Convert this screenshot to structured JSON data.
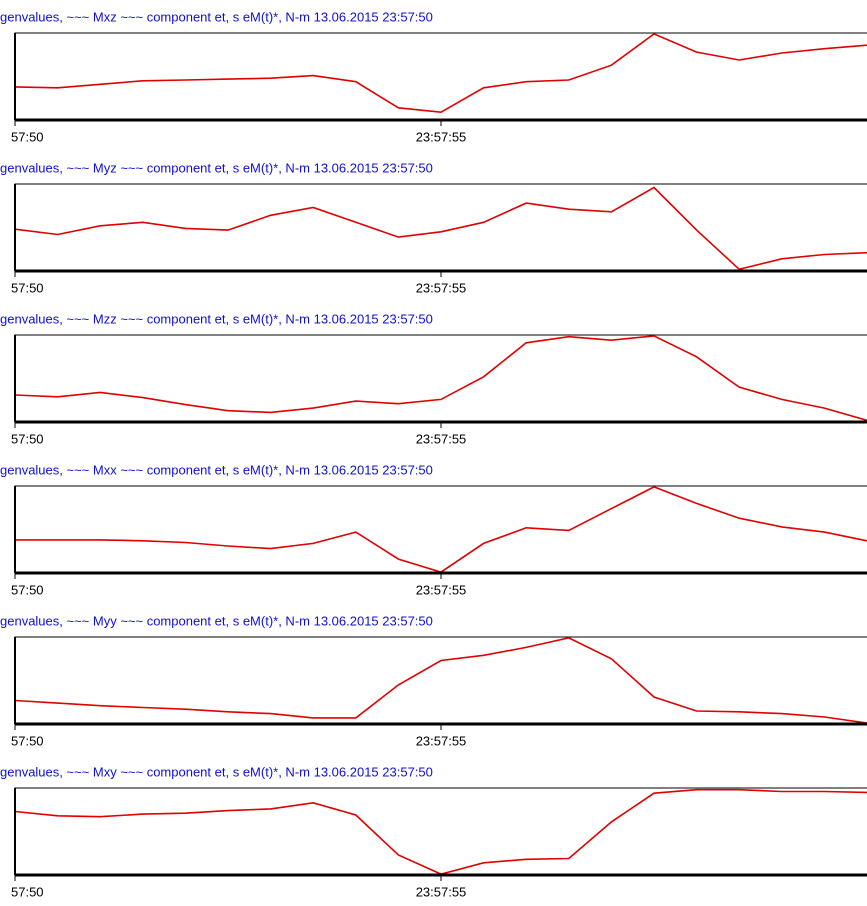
{
  "chart_data": [
    {
      "type": "line",
      "title": "genvalues, ~~~ Mxz ~~~ component  et, s  eM(t)*, N-m 13.06.2015  23:57:50",
      "x": [
        0,
        0.5,
        1,
        1.5,
        2,
        2.5,
        3,
        3.5,
        4,
        4.5,
        5,
        5.5,
        6,
        6.5,
        7,
        7.5,
        8,
        8.5,
        9,
        9.5,
        10
      ],
      "series": [
        {
          "color": "#e00000",
          "values": [
            0.38,
            0.37,
            0.41,
            0.45,
            0.46,
            0.47,
            0.48,
            0.51,
            0.44,
            0.14,
            0.09,
            0.37,
            0.44,
            0.46,
            0.63,
            0.99,
            0.78,
            0.69,
            0.77,
            0.82,
            0.86
          ]
        }
      ],
      "xlim": [
        0,
        10
      ],
      "ylim": [
        0,
        1
      ],
      "xticks": [
        {
          "value": 0,
          "label": "57:50"
        },
        {
          "value": 5,
          "label": "23:57:55"
        }
      ]
    },
    {
      "type": "line",
      "title": "genvalues, ~~~ Myz ~~~ component  et, s  eM(t)*, N-m 13.06.2015  23:57:50",
      "x": [
        0,
        0.5,
        1,
        1.5,
        2,
        2.5,
        3,
        3.5,
        4,
        4.5,
        5,
        5.5,
        6,
        6.5,
        7,
        7.5,
        8,
        8.5,
        9,
        9.5,
        10
      ],
      "series": [
        {
          "color": "#e00000",
          "values": [
            0.48,
            0.42,
            0.52,
            0.56,
            0.49,
            0.47,
            0.64,
            0.73,
            0.56,
            0.39,
            0.45,
            0.56,
            0.78,
            0.71,
            0.68,
            0.96,
            0.47,
            0.02,
            0.14,
            0.19,
            0.21
          ]
        }
      ],
      "xlim": [
        0,
        10
      ],
      "ylim": [
        0,
        1
      ],
      "xticks": [
        {
          "value": 0,
          "label": "57:50"
        },
        {
          "value": 5,
          "label": "23:57:55"
        }
      ]
    },
    {
      "type": "line",
      "title": "genvalues, ~~~ Mzz ~~~ component  et, s  eM(t)*, N-m 13.06.2015  23:57:50",
      "x": [
        0,
        0.5,
        1,
        1.5,
        2,
        2.5,
        3,
        3.5,
        4,
        4.5,
        5,
        5.5,
        6,
        6.5,
        7,
        7.5,
        8,
        8.5,
        9,
        9.5,
        10
      ],
      "series": [
        {
          "color": "#e00000",
          "values": [
            0.31,
            0.29,
            0.34,
            0.28,
            0.2,
            0.13,
            0.11,
            0.16,
            0.24,
            0.21,
            0.26,
            0.52,
            0.91,
            0.98,
            0.94,
            0.99,
            0.75,
            0.4,
            0.26,
            0.16,
            0.02
          ]
        }
      ],
      "xlim": [
        0,
        10
      ],
      "ylim": [
        0,
        1
      ],
      "xticks": [
        {
          "value": 0,
          "label": "57:50"
        },
        {
          "value": 5,
          "label": "23:57:55"
        }
      ]
    },
    {
      "type": "line",
      "title": "genvalues, ~~~ Mxx ~~~ component  et, s  eM(t)*, N-m 13.06.2015  23:57:50",
      "x": [
        0,
        0.5,
        1,
        1.5,
        2,
        2.5,
        3,
        3.5,
        4,
        4.5,
        5,
        5.5,
        6,
        6.5,
        7,
        7.5,
        8,
        8.5,
        9,
        9.5,
        10
      ],
      "series": [
        {
          "color": "#e00000",
          "values": [
            0.38,
            0.38,
            0.38,
            0.37,
            0.35,
            0.31,
            0.28,
            0.34,
            0.47,
            0.16,
            0.01,
            0.34,
            0.52,
            0.49,
            0.74,
            0.99,
            0.8,
            0.63,
            0.53,
            0.47,
            0.37
          ]
        }
      ],
      "xlim": [
        0,
        10
      ],
      "ylim": [
        0,
        1
      ],
      "xticks": [
        {
          "value": 0,
          "label": "57:50"
        },
        {
          "value": 5,
          "label": "23:57:55"
        }
      ]
    },
    {
      "type": "line",
      "title": "genvalues, ~~~ Myy ~~~ component  et, s  eM(t)*, N-m 13.06.2015  23:57:50",
      "x": [
        0,
        0.5,
        1,
        1.5,
        2,
        2.5,
        3,
        3.5,
        4,
        4.5,
        5,
        5.5,
        6,
        6.5,
        7,
        7.5,
        8,
        8.5,
        9,
        9.5,
        10
      ],
      "series": [
        {
          "color": "#e00000",
          "values": [
            0.27,
            0.24,
            0.21,
            0.19,
            0.17,
            0.14,
            0.12,
            0.07,
            0.07,
            0.45,
            0.73,
            0.79,
            0.88,
            0.99,
            0.75,
            0.31,
            0.15,
            0.14,
            0.12,
            0.08,
            0.01
          ]
        }
      ],
      "xlim": [
        0,
        10
      ],
      "ylim": [
        0,
        1
      ],
      "xticks": [
        {
          "value": 0,
          "label": "57:50"
        },
        {
          "value": 5,
          "label": "23:57:55"
        }
      ]
    },
    {
      "type": "line",
      "title": "genvalues, ~~~ Mxy ~~~ component  et, s  eM(t)*, N-m 13.06.2015  23:57:50",
      "x": [
        0,
        0.5,
        1,
        1.5,
        2,
        2.5,
        3,
        3.5,
        4,
        4.5,
        5,
        5.5,
        6,
        6.5,
        7,
        7.5,
        8,
        8.5,
        9,
        9.5,
        10
      ],
      "series": [
        {
          "color": "#e00000",
          "values": [
            0.73,
            0.68,
            0.67,
            0.7,
            0.71,
            0.74,
            0.76,
            0.83,
            0.69,
            0.23,
            0.01,
            0.14,
            0.18,
            0.19,
            0.61,
            0.94,
            0.98,
            0.98,
            0.96,
            0.96,
            0.95
          ]
        }
      ],
      "xlim": [
        0,
        10
      ],
      "ylim": [
        0,
        1
      ],
      "xticks": [
        {
          "value": 0,
          "label": "57:50"
        },
        {
          "value": 5,
          "label": "23:57:55"
        }
      ]
    }
  ]
}
